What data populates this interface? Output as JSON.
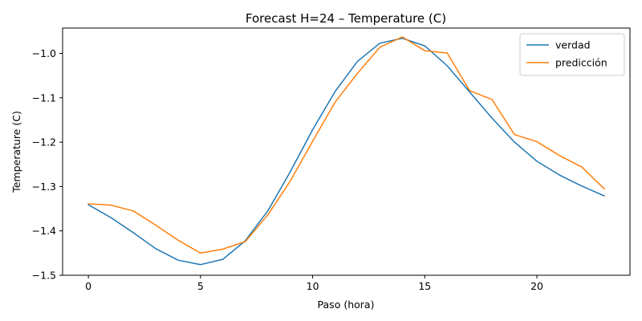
{
  "chart_data": {
    "type": "line",
    "title": "Forecast H=24 – Temperature (C)",
    "xlabel": "Paso (hora)",
    "ylabel": "Temperature (C)",
    "xlim": [
      -1.15,
      24.15
    ],
    "ylim": [
      -1.5,
      -0.943
    ],
    "xticks": [
      0,
      5,
      10,
      15,
      20
    ],
    "yticks": [
      -1.5,
      -1.4,
      -1.3,
      -1.2,
      -1.1,
      -1.0
    ],
    "xtick_labels": [
      "0",
      "5",
      "10",
      "15",
      "20"
    ],
    "ytick_labels": [
      "−1.5",
      "−1.4",
      "−1.3",
      "−1.2",
      "−1.1",
      "−1.0"
    ],
    "grid": false,
    "legend_position": "top-right",
    "x": [
      0,
      1,
      2,
      3,
      4,
      5,
      6,
      7,
      8,
      9,
      10,
      11,
      12,
      13,
      14,
      15,
      16,
      17,
      18,
      19,
      20,
      21,
      22,
      23
    ],
    "series": [
      {
        "name": "verdad",
        "color": "#1f77b4",
        "values": [
          -1.341,
          -1.37,
          -1.404,
          -1.44,
          -1.466,
          -1.476,
          -1.464,
          -1.422,
          -1.355,
          -1.267,
          -1.172,
          -1.086,
          -1.018,
          -0.977,
          -0.966,
          -0.983,
          -1.028,
          -1.087,
          -1.146,
          -1.2,
          -1.243,
          -1.274,
          -1.299,
          -1.321
        ]
      },
      {
        "name": "predicción",
        "color": "#ff7f0e",
        "values": [
          -1.339,
          -1.342,
          -1.355,
          -1.387,
          -1.421,
          -1.45,
          -1.441,
          -1.424,
          -1.364,
          -1.288,
          -1.198,
          -1.11,
          -1.045,
          -0.986,
          -0.963,
          -0.994,
          -0.999,
          -1.084,
          -1.104,
          -1.183,
          -1.199,
          -1.23,
          -1.256,
          -1.305
        ]
      }
    ]
  }
}
